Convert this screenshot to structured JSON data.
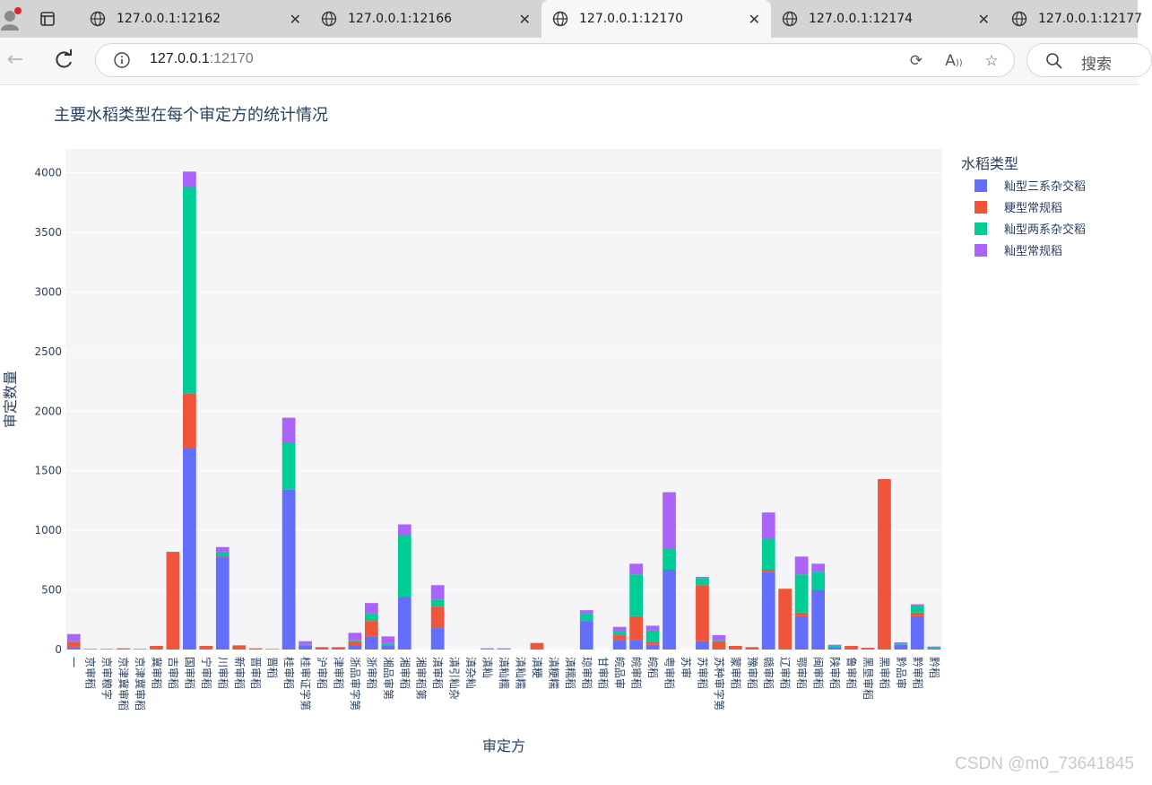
{
  "browser": {
    "tabs": [
      {
        "title": "127.0.0.1:12162",
        "active": false
      },
      {
        "title": "127.0.0.1:12166",
        "active": false
      },
      {
        "title": "127.0.0.1:12170",
        "active": true
      },
      {
        "title": "127.0.0.1:12174",
        "active": false
      },
      {
        "title": "127.0.0.1:12177",
        "active": false
      }
    ],
    "url_host": "127.0.0.1",
    "url_port": ":12170",
    "search_label": "搜索"
  },
  "watermark": "CSDN @m0_73641845",
  "colors": {
    "series": [
      "#636efa",
      "#EF553B",
      "#00cc96",
      "#ab63fa"
    ],
    "plot_bg": "#f5f5f8",
    "grid": "#ffffff",
    "text": "#2a3f5f"
  },
  "chart_data": {
    "type": "bar",
    "stacked": true,
    "title": "主要水稻类型在每个审定方的统计情况",
    "xlabel": "审定方",
    "ylabel": "审定数量",
    "ylim": [
      0,
      4200
    ],
    "yticks": [
      0,
      500,
      1000,
      1500,
      2000,
      2500,
      3000,
      3500,
      4000
    ],
    "grid": true,
    "legend_title": "水稻类型",
    "legend_position": "right",
    "categories": [
      "一",
      "京审稻",
      "京审粮字",
      "京津冀审稻",
      "京津冀审稻",
      "冀审稻",
      "吉审稻",
      "国审稻",
      "宁审稻",
      "川审稻",
      "新审稻",
      "晋审稻",
      "晋稻",
      "桂审稻",
      "桂审证字第",
      "沪审稻",
      "津审稻",
      "浙品审字第",
      "浙审稻",
      "湘品审第",
      "湘审稻",
      "湘审稻第",
      "滇审稻",
      "滇引籼杂",
      "滇杂籼",
      "滇籼",
      "滇籼糯",
      "滇籼糯",
      "滇粳",
      "滇粳糯",
      "滇糯稻",
      "琼审稻",
      "甘审稻",
      "皖品审",
      "皖审稻",
      "皖稻",
      "粤审稻",
      "苏审",
      "苏审稻",
      "苏种审字第",
      "蒙审稻",
      "豫审稻",
      "赣审稻",
      "辽审稻",
      "鄂审稻",
      "闽审稻",
      "陕审稻",
      "鲁审稻",
      "黑垦审稻",
      "黑审稻",
      "黔品审",
      "黔审稻",
      "黔稻"
    ],
    "series": [
      {
        "name": "籼型三系杂交稻",
        "values": [
          20,
          0,
          0,
          0,
          0,
          0,
          0,
          1690,
          0,
          780,
          0,
          0,
          0,
          1340,
          30,
          0,
          0,
          30,
          110,
          30,
          440,
          0,
          180,
          0,
          0,
          0,
          0,
          0,
          0,
          0,
          0,
          240,
          0,
          80,
          80,
          40,
          670,
          0,
          70,
          0,
          0,
          0,
          650,
          0,
          280,
          500,
          20,
          0,
          0,
          0,
          40,
          280,
          10
        ]
      },
      {
        "name": "粳型常规稻",
        "values": [
          40,
          5,
          5,
          10,
          5,
          30,
          820,
          460,
          30,
          10,
          35,
          10,
          5,
          5,
          0,
          20,
          20,
          40,
          130,
          0,
          0,
          0,
          180,
          0,
          0,
          0,
          5,
          0,
          55,
          0,
          0,
          0,
          0,
          40,
          200,
          20,
          0,
          0,
          470,
          70,
          30,
          20,
          20,
          510,
          30,
          0,
          0,
          30,
          15,
          1430,
          0,
          30,
          0
        ]
      },
      {
        "name": "籼型两系杂交稻",
        "values": [
          10,
          0,
          0,
          0,
          0,
          0,
          0,
          1730,
          0,
          30,
          0,
          0,
          0,
          390,
          10,
          0,
          0,
          10,
          60,
          20,
          520,
          0,
          60,
          0,
          0,
          0,
          0,
          0,
          0,
          0,
          0,
          60,
          0,
          30,
          350,
          100,
          180,
          0,
          60,
          10,
          0,
          0,
          260,
          0,
          320,
          150,
          10,
          0,
          0,
          0,
          10,
          60,
          5
        ]
      },
      {
        "name": "籼型常规稻",
        "values": [
          60,
          0,
          0,
          0,
          0,
          0,
          0,
          130,
          0,
          40,
          0,
          0,
          0,
          210,
          30,
          0,
          0,
          60,
          90,
          60,
          90,
          0,
          120,
          0,
          0,
          10,
          5,
          0,
          0,
          0,
          0,
          30,
          0,
          40,
          90,
          40,
          470,
          0,
          10,
          40,
          0,
          0,
          220,
          0,
          150,
          70,
          10,
          0,
          0,
          0,
          10,
          10,
          10
        ]
      }
    ]
  }
}
